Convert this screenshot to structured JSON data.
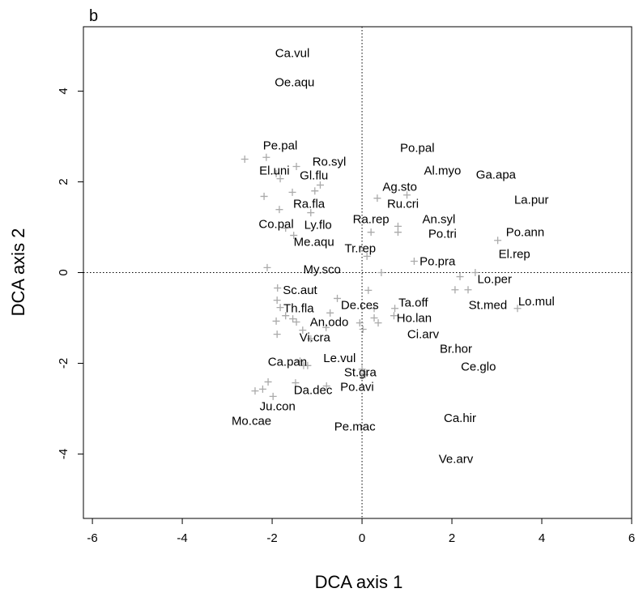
{
  "chart_data": {
    "type": "ordination",
    "panel_label": "b",
    "x_label": "DCA axis 1",
    "y_label": "DCA axis 2",
    "xlim": [
      -6.2,
      6.0
    ],
    "ylim": [
      -5.42,
      5.42
    ],
    "xticks": [
      -6,
      -4,
      -2,
      0,
      2,
      4,
      6
    ],
    "yticks": [
      -4,
      -2,
      0,
      2,
      4
    ],
    "zero_lines": true,
    "species": {
      "color": "#000000",
      "labels": [
        "Ca.vul",
        "Oe.aqu",
        "Pe.pal",
        "Ro.syl",
        "El.uni",
        "Gl.flu",
        "Po.pal",
        "Al.myo",
        "Ga.apa",
        "Ag.sto",
        "La.pur",
        "Ra.fla",
        "Ru.cri",
        "Ra.rep",
        "An.syl",
        "Co.pal",
        "Ly.flo",
        "Po.ann",
        "Po.tri",
        "Me.aqu",
        "Tr.rep",
        "El.rep",
        "Po.pra",
        "My.sco",
        "Lo.per",
        "Sc.aut",
        "Lo.mul",
        "St.med",
        "Ta.off",
        "Th.fla",
        "De.ces",
        "Ho.lan",
        "An.odo",
        "Ci.arv",
        "Vi.cra",
        "Br.hor",
        "Le.vul",
        "Ca.pan",
        "Ce.glo",
        "St.gra",
        "Po.avi",
        "Da.dec",
        "Ju.con",
        "Mo.cae",
        "Ca.hir",
        "Pe.mac",
        "Ve.arv"
      ],
      "x": [
        -1.55,
        -1.5,
        -1.82,
        -0.73,
        -1.95,
        -1.07,
        1.23,
        1.79,
        2.98,
        0.84,
        3.77,
        -1.18,
        0.91,
        0.2,
        1.71,
        -1.91,
        -0.98,
        3.63,
        1.79,
        -1.07,
        -0.04,
        3.39,
        1.68,
        -0.89,
        2.95,
        -1.38,
        3.88,
        2.8,
        1.14,
        -1.41,
        -0.05,
        1.16,
        -0.73,
        1.36,
        -1.05,
        2.09,
        -0.5,
        -1.66,
        2.59,
        -0.04,
        -0.11,
        -1.09,
        -1.88,
        -2.46,
        2.18,
        -0.16,
        2.09
      ],
      "y": [
        4.84,
        4.2,
        2.8,
        2.45,
        2.25,
        2.14,
        2.75,
        2.25,
        2.16,
        1.89,
        1.61,
        1.52,
        1.52,
        1.18,
        1.18,
        1.07,
        1.05,
        0.89,
        0.86,
        0.68,
        0.54,
        0.41,
        0.25,
        0.07,
        -0.14,
        -0.38,
        -0.63,
        -0.71,
        -0.66,
        -0.79,
        -0.71,
        -1.0,
        -1.09,
        -1.36,
        -1.43,
        -1.68,
        -1.88,
        -1.96,
        -2.07,
        -2.2,
        -2.52,
        -2.59,
        -2.95,
        -3.27,
        -3.21,
        -3.39,
        -4.11
      ]
    },
    "sites": {
      "color": "#aaaaaa",
      "x": [
        -2.61,
        -2.13,
        -1.91,
        -1.82,
        -1.46,
        -0.93,
        -1.05,
        -1.55,
        -2.18,
        -1.84,
        -1.14,
        -1.7,
        -1.52,
        0.34,
        1.0,
        0.8,
        0.8,
        0.2,
        0.11,
        1.16,
        0.43,
        3.02,
        2.52,
        2.18,
        2.36,
        2.07,
        3.46,
        -2.11,
        -1.88,
        -1.89,
        -1.82,
        -1.7,
        -1.54,
        -1.46,
        -1.91,
        -1.89,
        -1.32,
        -1.14,
        -0.8,
        -0.71,
        0.14,
        0.27,
        0.73,
        0.71,
        0.27,
        0.36,
        -0.05,
        0.02,
        -1.38,
        -1.3,
        -1.21,
        0.0,
        0.07,
        -0.79,
        -2.09,
        -2.21,
        -2.38,
        -1.98,
        -1.48,
        -0.55
      ],
      "y": [
        2.5,
        2.54,
        2.18,
        2.07,
        2.34,
        1.93,
        1.8,
        1.77,
        1.68,
        1.39,
        1.32,
        0.98,
        0.82,
        1.64,
        1.71,
        1.02,
        0.89,
        0.89,
        0.36,
        0.25,
        0.0,
        0.71,
        0.0,
        -0.09,
        -0.38,
        -0.38,
        -0.79,
        0.11,
        -0.34,
        -0.61,
        -0.77,
        -0.95,
        -1.02,
        -1.09,
        -1.07,
        -1.36,
        -1.27,
        -1.46,
        -1.21,
        -0.89,
        -0.39,
        -0.79,
        -0.79,
        -0.95,
        -1.0,
        -1.11,
        -1.11,
        -1.25,
        -1.95,
        -2.05,
        -2.05,
        -2.13,
        -2.25,
        -2.5,
        -2.41,
        -2.57,
        -2.61,
        -2.73,
        -2.43,
        -0.57
      ]
    }
  }
}
